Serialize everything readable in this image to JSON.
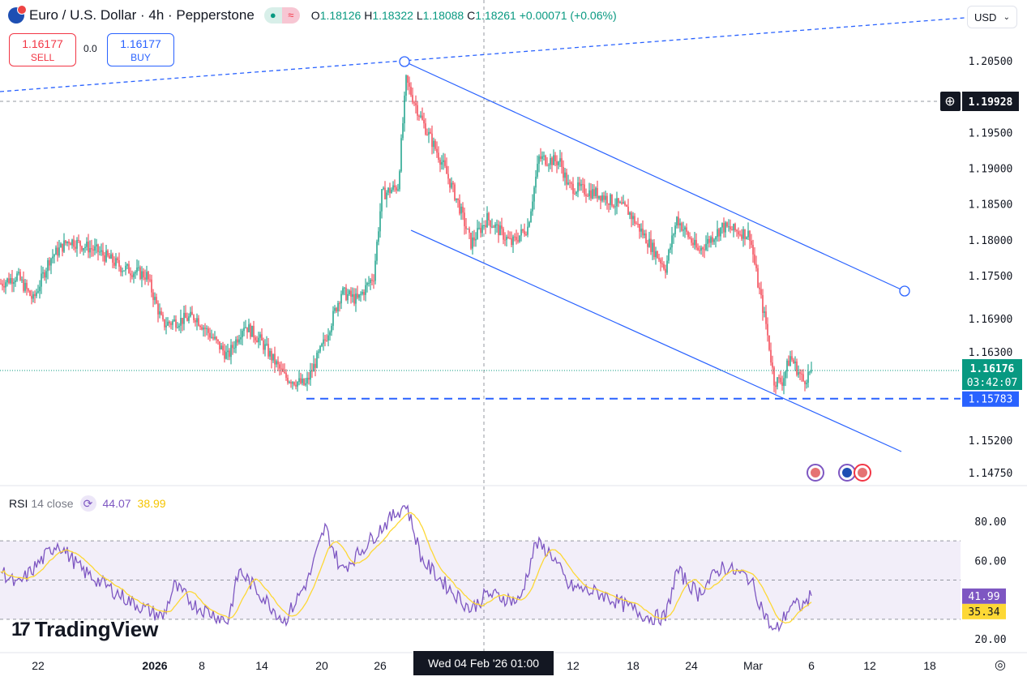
{
  "header": {
    "symbol": "Euro / U.S. Dollar · 4h · Pepperstone",
    "open_label": "O",
    "open": "1.18126",
    "high_label": "H",
    "high": "1.18322",
    "low_label": "L",
    "low": "1.18088",
    "close_label": "C",
    "close": "1.18261",
    "change": "+0.00071 (+0.06%)",
    "market_status_icon": "●",
    "volatility_icon": "≈"
  },
  "trade": {
    "sell_price": "1.16177",
    "sell_label": "SELL",
    "spread": "0.0",
    "buy_price": "1.16177",
    "buy_label": "BUY"
  },
  "currency_select": {
    "value": "USD",
    "chevron": "⌄"
  },
  "price_axis": {
    "ticks": [
      "1.20500",
      "1.19500",
      "1.19000",
      "1.18500",
      "1.18000",
      "1.17500",
      "1.16900",
      "1.16300",
      "1.15200",
      "1.14750"
    ],
    "crosshair_price": "1.19928",
    "last_price": "1.16176",
    "countdown": "03:42:07",
    "horizontal_line_price": "1.15783"
  },
  "rsi": {
    "name": "RSI",
    "params": "14 close",
    "value": "44.07",
    "ma_value": "38.99",
    "axis_ticks": [
      "80.00",
      "60.00",
      "20.00"
    ],
    "last_value": "41.99",
    "last_ma_value": "35.34"
  },
  "time_axis": {
    "ticks": [
      {
        "label": "22",
        "bar": 23
      },
      {
        "label": "2026",
        "bar": 95
      },
      {
        "label": "8",
        "bar": 124
      },
      {
        "label": "14",
        "bar": 161
      },
      {
        "label": "20",
        "bar": 198
      },
      {
        "label": "26",
        "bar": 234
      },
      {
        "label": "12",
        "bar": 353
      },
      {
        "label": "18",
        "bar": 390
      },
      {
        "label": "24",
        "bar": 426
      },
      {
        "label": "Mar",
        "bar": 464
      },
      {
        "label": "6",
        "bar": 500
      },
      {
        "label": "12",
        "bar": 536
      },
      {
        "label": "18",
        "bar": 573
      }
    ],
    "crosshair_label": "Wed 04 Feb '26   01:00"
  },
  "branding": {
    "logo_text": "TradingView"
  },
  "colors": {
    "up": "#089981",
    "down": "#f23645",
    "drawing": "#2962ff",
    "rsi": "#7e57c2",
    "rsi_ma": "#fdd835"
  },
  "chart_data": {
    "type": "candlestick",
    "title": "Euro / U.S. Dollar · 4h · Pepperstone",
    "close_anchors": [
      [
        0,
        1.1739
      ],
      [
        10,
        1.175
      ],
      [
        20,
        1.1716
      ],
      [
        30,
        1.1773
      ],
      [
        42,
        1.18
      ],
      [
        60,
        1.1784
      ],
      [
        75,
        1.1761
      ],
      [
        90,
        1.175
      ],
      [
        100,
        1.1682
      ],
      [
        120,
        1.1693
      ],
      [
        140,
        1.1637
      ],
      [
        150,
        1.1682
      ],
      [
        160,
        1.166
      ],
      [
        175,
        1.1609
      ],
      [
        188,
        1.1597
      ],
      [
        200,
        1.166
      ],
      [
        210,
        1.1727
      ],
      [
        220,
        1.1716
      ],
      [
        230,
        1.175
      ],
      [
        235,
        1.1863
      ],
      [
        245,
        1.1875
      ],
      [
        250,
        1.2022
      ],
      [
        260,
        1.1965
      ],
      [
        272,
        1.1909
      ],
      [
        282,
        1.1852
      ],
      [
        290,
        1.1795
      ],
      [
        300,
        1.183
      ],
      [
        315,
        1.1795
      ],
      [
        325,
        1.1818
      ],
      [
        332,
        1.1914
      ],
      [
        345,
        1.1909
      ],
      [
        350,
        1.1875
      ],
      [
        370,
        1.1863
      ],
      [
        387,
        1.184
      ],
      [
        400,
        1.1795
      ],
      [
        410,
        1.1761
      ],
      [
        417,
        1.183
      ],
      [
        430,
        1.1784
      ],
      [
        445,
        1.1818
      ],
      [
        462,
        1.1807
      ],
      [
        467,
        1.1739
      ],
      [
        472,
        1.1682
      ],
      [
        477,
        1.1603
      ],
      [
        482,
        1.1603
      ],
      [
        487,
        1.1637
      ],
      [
        495,
        1.1603
      ],
      [
        500,
        1.1618
      ]
    ],
    "rsi_anchors": [
      [
        0,
        55
      ],
      [
        10,
        47
      ],
      [
        25,
        60
      ],
      [
        35,
        69
      ],
      [
        50,
        55
      ],
      [
        65,
        47
      ],
      [
        80,
        39
      ],
      [
        100,
        31
      ],
      [
        107,
        47
      ],
      [
        120,
        37
      ],
      [
        140,
        29
      ],
      [
        147,
        55
      ],
      [
        160,
        43
      ],
      [
        175,
        29
      ],
      [
        190,
        51
      ],
      [
        200,
        77
      ],
      [
        210,
        55
      ],
      [
        220,
        63
      ],
      [
        235,
        77
      ],
      [
        250,
        89
      ],
      [
        260,
        60
      ],
      [
        275,
        47
      ],
      [
        290,
        35
      ],
      [
        300,
        43
      ],
      [
        320,
        39
      ],
      [
        330,
        69
      ],
      [
        340,
        63
      ],
      [
        350,
        47
      ],
      [
        370,
        43
      ],
      [
        390,
        35
      ],
      [
        400,
        31
      ],
      [
        410,
        31
      ],
      [
        417,
        55
      ],
      [
        430,
        43
      ],
      [
        445,
        57
      ],
      [
        462,
        51
      ],
      [
        472,
        31
      ],
      [
        477,
        23
      ],
      [
        482,
        29
      ],
      [
        487,
        37
      ],
      [
        495,
        37
      ],
      [
        500,
        41.99
      ]
    ],
    "price_range": [
      1.1475,
      1.205
    ],
    "rsi_range": [
      20,
      80
    ],
    "rsi_bands": [
      30,
      50,
      70
    ]
  }
}
